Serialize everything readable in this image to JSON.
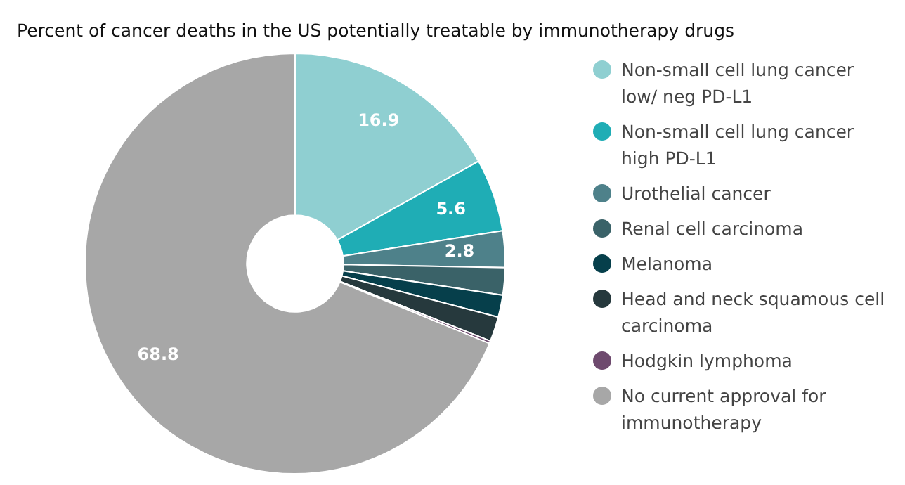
{
  "chart_data": {
    "type": "donut",
    "title": "Percent of cancer deaths in the US potentially treatable by immunotherapy drugs",
    "categories": [
      "Non-small cell lung cancer low/ neg PD-L1",
      "Non-small cell lung cancer high PD-L1",
      "Urothelial cancer",
      "Renal cell carcinoma",
      "Melanoma",
      "Head and neck squamous cell carcinoma",
      "Hodgkin lymphoma",
      "No current approval for immunotherapy"
    ],
    "values": [
      16.9,
      5.6,
      2.8,
      2.1,
      1.7,
      1.9,
      0.2,
      68.8
    ],
    "colors": [
      "#8fcfd1",
      "#1fadb5",
      "#4e818a",
      "#3a6268",
      "#063f4b",
      "#26393d",
      "#6e4a6e",
      "#a7a7a7"
    ],
    "value_labels": [
      "16.9",
      "5.6",
      "2.8",
      null,
      null,
      null,
      null,
      "68.8"
    ],
    "legend": "right"
  }
}
